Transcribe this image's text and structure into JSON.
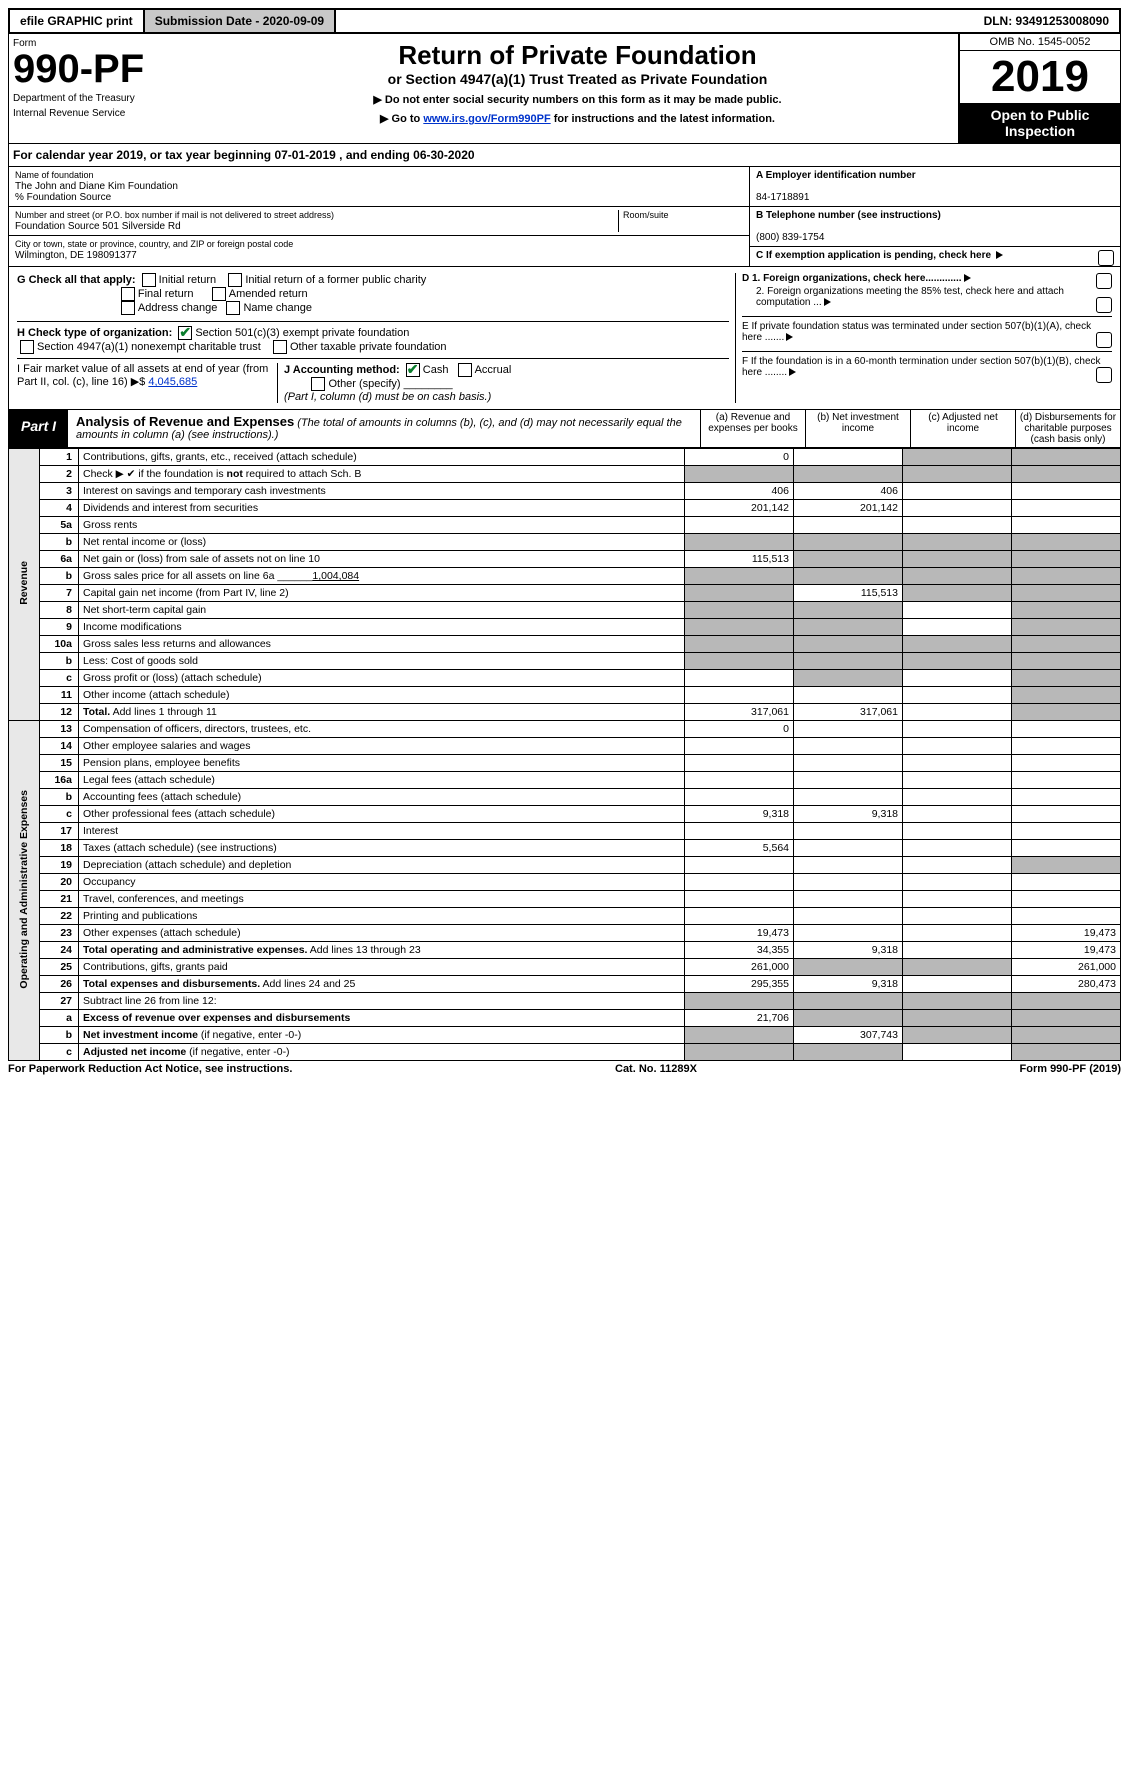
{
  "topbar": {
    "efile": "efile GRAPHIC print",
    "subdate_lbl": "Submission Date - 2020-09-09",
    "dln": "DLN: 93491253008090"
  },
  "header": {
    "form_word": "Form",
    "form_no": "990-PF",
    "dept": "Department of the Treasury",
    "irs": "Internal Revenue Service",
    "title": "Return of Private Foundation",
    "subtitle": "or Section 4947(a)(1) Trust Treated as Private Foundation",
    "instr1": "▶ Do not enter social security numbers on this form as it may be made public.",
    "instr2a": "▶ Go to ",
    "instr2_link": "www.irs.gov/Form990PF",
    "instr2b": " for instructions and the latest information.",
    "omb": "OMB No. 1545-0052",
    "year": "2019",
    "open": "Open to Public Inspection"
  },
  "cal": "For calendar year 2019, or tax year beginning 07-01-2019                     , and ending 06-30-2020",
  "info": {
    "name_lbl": "Name of foundation",
    "name": "The John and Diane Kim Foundation",
    "care": "% Foundation Source",
    "street_lbl": "Number and street (or P.O. box number if mail is not delivered to street address)",
    "street": "Foundation Source 501 Silverside Rd",
    "room_lbl": "Room/suite",
    "city_lbl": "City or town, state or province, country, and ZIP or foreign postal code",
    "city": "Wilmington, DE  198091377",
    "a_lbl": "A Employer identification number",
    "a": "84-1718891",
    "b_lbl": "B  Telephone number (see instructions)",
    "b": "(800) 839-1754",
    "c_lbl": "C  If exemption application is pending, check here"
  },
  "g": {
    "label": "G Check all that apply:",
    "initial": "Initial return",
    "initial_pub": "Initial return of a former public charity",
    "final": "Final return",
    "amended": "Amended return",
    "addr": "Address change",
    "name": "Name change"
  },
  "h": {
    "label": "H Check type of organization:",
    "c3": "Section 501(c)(3) exempt private foundation",
    "a1": "Section 4947(a)(1) nonexempt charitable trust",
    "other": "Other taxable private foundation"
  },
  "i": {
    "label": "I Fair market value of all assets at end of year (from Part II, col. (c), line 16)  ▶$",
    "val": "4,045,685"
  },
  "j": {
    "label": "J Accounting method:",
    "cash": "Cash",
    "accrual": "Accrual",
    "other": "Other (specify)",
    "note": "(Part I, column (d) must be on cash basis.)"
  },
  "d": {
    "d1": "D 1. Foreign organizations, check here.............",
    "d2": "2. Foreign organizations meeting the 85% test, check here and attach computation ..."
  },
  "e": "E   If private foundation status was terminated under section 507(b)(1)(A), check here .......",
  "f": "F   If the foundation is in a 60-month termination under section 507(b)(1)(B), check here ........",
  "part1": {
    "tab": "Part I",
    "title": "Analysis of Revenue and Expenses",
    "note": "(The total of amounts in columns (b), (c), and (d) may not necessarily equal the amounts in column (a) (see instructions).)"
  },
  "cols": {
    "a": "(a)   Revenue and expenses per books",
    "b": "(b)  Net investment income",
    "c": "(c)  Adjusted net income",
    "d": "(d)  Disbursements for charitable purposes (cash basis only)"
  },
  "sections": {
    "rev": "Revenue",
    "exp": "Operating and Administrative Expenses"
  },
  "rows": [
    {
      "n": "1",
      "d": "Contributions, gifts, grants, etc., received (attach schedule)",
      "a": "0",
      "cs": true,
      "ds": true
    },
    {
      "n": "2",
      "d": "Check ▶ ✔ if the foundation is <b>not</b> required to attach Sch. B",
      "as": true,
      "bs": true,
      "cs": true,
      "ds": true,
      "html": true
    },
    {
      "n": "3",
      "d": "Interest on savings and temporary cash investments",
      "a": "406",
      "b": "406"
    },
    {
      "n": "4",
      "d": "Dividends and interest from securities",
      "a": "201,142",
      "b": "201,142"
    },
    {
      "n": "5a",
      "d": "Gross rents"
    },
    {
      "n": "b",
      "d": "Net rental income or (loss)",
      "as": true,
      "bs": true,
      "cs": true,
      "ds": true
    },
    {
      "n": "6a",
      "d": "Net gain or (loss) from sale of assets not on line 10",
      "a": "115,513",
      "bs": true,
      "cs": true,
      "ds": true
    },
    {
      "n": "b",
      "d": "Gross sales price for all assets on line 6a ______<u>1,004,084</u>",
      "as": true,
      "bs": true,
      "cs": true,
      "ds": true,
      "html": true
    },
    {
      "n": "7",
      "d": "Capital gain net income (from Part IV, line 2)",
      "as": true,
      "b": "115,513",
      "cs": true,
      "ds": true
    },
    {
      "n": "8",
      "d": "Net short-term capital gain",
      "as": true,
      "bs": true,
      "ds": true
    },
    {
      "n": "9",
      "d": "Income modifications",
      "as": true,
      "bs": true,
      "ds": true
    },
    {
      "n": "10a",
      "d": "Gross sales less returns and allowances",
      "as": true,
      "bs": true,
      "cs": true,
      "ds": true
    },
    {
      "n": "b",
      "d": "Less: Cost of goods sold",
      "as": true,
      "bs": true,
      "cs": true,
      "ds": true
    },
    {
      "n": "c",
      "d": "Gross profit or (loss) (attach schedule)",
      "bs": true,
      "ds": true
    },
    {
      "n": "11",
      "d": "Other income (attach schedule)",
      "ds": true
    },
    {
      "n": "12",
      "d": "<b>Total.</b> Add lines 1 through 11",
      "a": "317,061",
      "b": "317,061",
      "ds": true,
      "html": true
    }
  ],
  "exprows": [
    {
      "n": "13",
      "d": "Compensation of officers, directors, trustees, etc.",
      "a": "0"
    },
    {
      "n": "14",
      "d": "Other employee salaries and wages"
    },
    {
      "n": "15",
      "d": "Pension plans, employee benefits"
    },
    {
      "n": "16a",
      "d": "Legal fees (attach schedule)"
    },
    {
      "n": "b",
      "d": "Accounting fees (attach schedule)"
    },
    {
      "n": "c",
      "d": "Other professional fees (attach schedule)",
      "a": "9,318",
      "b": "9,318"
    },
    {
      "n": "17",
      "d": "Interest"
    },
    {
      "n": "18",
      "d": "Taxes (attach schedule) (see instructions)",
      "a": "5,564"
    },
    {
      "n": "19",
      "d": "Depreciation (attach schedule) and depletion",
      "ds": true
    },
    {
      "n": "20",
      "d": "Occupancy"
    },
    {
      "n": "21",
      "d": "Travel, conferences, and meetings"
    },
    {
      "n": "22",
      "d": "Printing and publications"
    },
    {
      "n": "23",
      "d": "Other expenses (attach schedule)",
      "a": "19,473",
      "d2": "19,473"
    },
    {
      "n": "24",
      "d": "<b>Total operating and administrative expenses.</b> Add lines 13 through 23",
      "a": "34,355",
      "b": "9,318",
      "d2": "19,473",
      "html": true
    },
    {
      "n": "25",
      "d": "Contributions, gifts, grants paid",
      "a": "261,000",
      "bs": true,
      "cs": true,
      "d2": "261,000"
    },
    {
      "n": "26",
      "d": "<b>Total expenses and disbursements.</b> Add lines 24 and 25",
      "a": "295,355",
      "b": "9,318",
      "d2": "280,473",
      "html": true
    },
    {
      "n": "27",
      "d": "Subtract line 26 from line 12:",
      "as": true,
      "bs": true,
      "cs": true,
      "ds": true
    },
    {
      "n": "a",
      "d": "<b>Excess of revenue over expenses and disbursements</b>",
      "a": "21,706",
      "bs": true,
      "cs": true,
      "ds": true,
      "html": true
    },
    {
      "n": "b",
      "d": "<b>Net investment income</b> (if negative, enter -0-)",
      "as": true,
      "b": "307,743",
      "cs": true,
      "ds": true,
      "html": true
    },
    {
      "n": "c",
      "d": "<b>Adjusted net income</b> (if negative, enter -0-)",
      "as": true,
      "bs": true,
      "ds": true,
      "html": true
    }
  ],
  "footer": {
    "left": "For Paperwork Reduction Act Notice, see instructions.",
    "mid": "Cat. No. 11289X",
    "right": "Form 990-PF (2019)"
  }
}
